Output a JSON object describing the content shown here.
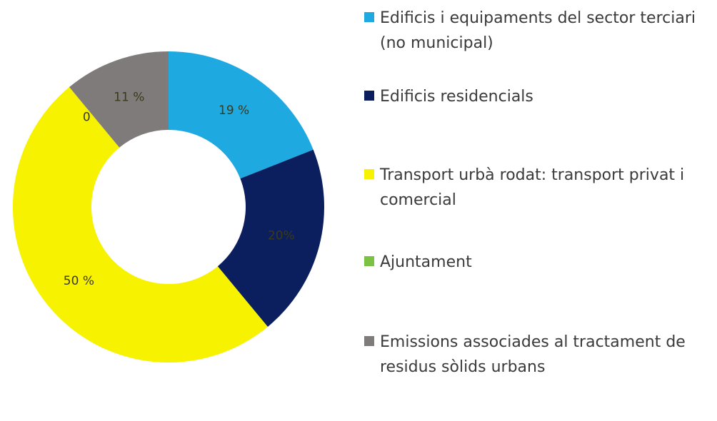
{
  "chart_data": {
    "type": "donut",
    "categories": [
      "Edificis i equipaments del sector terciari (no municipal)",
      "Edificis residencials",
      "Transport urbà rodat: transport privat i comercial",
      "Ajuntament",
      "Emissions associades al tractament de residus sòlids urbans"
    ],
    "values": [
      19,
      20,
      50,
      0,
      11
    ],
    "value_labels": [
      "19 %",
      "20%",
      "50 %",
      "0 %",
      "11 %"
    ],
    "colors": [
      "#1fa9e1",
      "#0b1f5e",
      "#f7f200",
      "#7cc242",
      "#7f7b7b"
    ],
    "legend": "right"
  }
}
